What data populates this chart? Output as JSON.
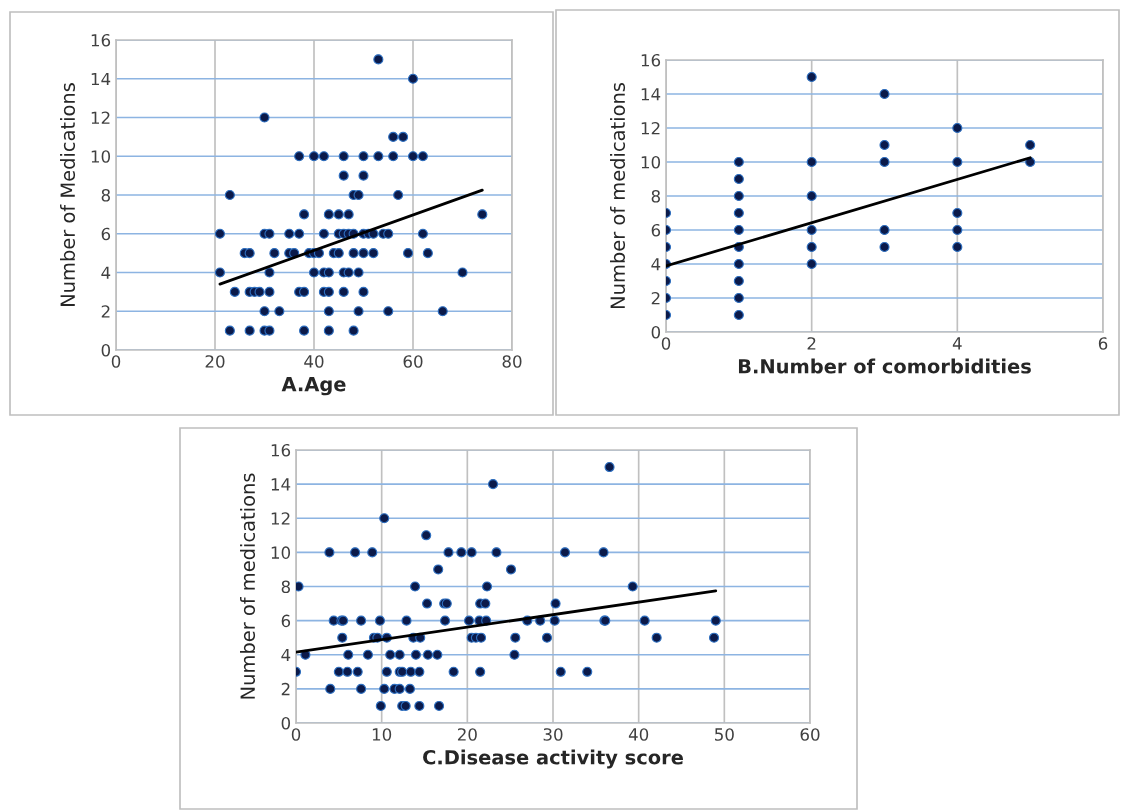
{
  "chart_data": [
    {
      "type": "scatter",
      "xlabel": "A.Age",
      "ylabel": "Number of Medications",
      "xlim": [
        0,
        80
      ],
      "xticks": [
        0,
        20,
        40,
        60,
        80
      ],
      "ylim": [
        0,
        16
      ],
      "yticks": [
        0,
        2,
        4,
        6,
        8,
        10,
        12,
        14,
        16
      ],
      "grid": true,
      "series": [
        {
          "marker": "circle",
          "color": "#0b1a4a",
          "x": [
            53,
            60,
            30,
            56,
            58,
            37,
            40,
            42,
            46,
            50,
            53,
            56,
            60,
            62,
            46,
            50,
            23,
            48,
            49,
            57,
            38,
            43,
            45,
            47,
            74,
            21,
            30,
            31,
            35,
            37,
            42,
            45,
            46,
            47,
            48,
            50,
            51,
            52,
            54,
            55,
            62,
            26,
            27,
            32,
            35,
            36,
            39,
            40,
            41,
            44,
            45,
            48,
            50,
            52,
            59,
            63,
            21,
            31,
            40,
            42,
            43,
            46,
            47,
            49,
            70,
            24,
            27,
            28,
            29,
            31,
            37,
            38,
            42,
            43,
            46,
            50,
            30,
            33,
            43,
            49,
            55,
            66,
            23,
            27,
            30,
            31,
            38,
            43,
            48
          ],
          "values": [
            15,
            14,
            12,
            11,
            11,
            10,
            10,
            10,
            10,
            10,
            10,
            10,
            10,
            10,
            9,
            9,
            8,
            8,
            8,
            8,
            7,
            7,
            7,
            7,
            7,
            6,
            6,
            6,
            6,
            6,
            6,
            6,
            6,
            6,
            6,
            6,
            6,
            6,
            6,
            6,
            6,
            5,
            5,
            5,
            5,
            5,
            5,
            5,
            5,
            5,
            5,
            5,
            5,
            5,
            5,
            5,
            4,
            4,
            4,
            4,
            4,
            4,
            4,
            4,
            4,
            3,
            3,
            3,
            3,
            3,
            3,
            3,
            3,
            3,
            3,
            3,
            2,
            2,
            2,
            2,
            2,
            2,
            1,
            1,
            1,
            1,
            1,
            1,
            1
          ]
        },
        {
          "type": "line",
          "color": "#000000",
          "x": [
            21,
            74
          ],
          "values": [
            3.4,
            8.25
          ]
        }
      ]
    },
    {
      "type": "scatter",
      "xlabel": "B.Number of comorbidities",
      "ylabel": "Number of medications",
      "xlim": [
        0,
        6
      ],
      "xticks": [
        0,
        2,
        4,
        6
      ],
      "ylim": [
        0,
        16
      ],
      "yticks": [
        0,
        2,
        4,
        6,
        8,
        10,
        12,
        14,
        16
      ],
      "grid": true,
      "series": [
        {
          "marker": "circle",
          "color": "#0b1a4a",
          "x": [
            0,
            0,
            0,
            0,
            0,
            0,
            0,
            1,
            1,
            1,
            1,
            1,
            1,
            1,
            1,
            1,
            1,
            2,
            2,
            2,
            2,
            2,
            2,
            3,
            3,
            3,
            3,
            3,
            4,
            4,
            4,
            4,
            4,
            5,
            5
          ],
          "values": [
            1,
            2,
            3,
            4,
            5,
            6,
            7,
            1,
            2,
            3,
            4,
            5,
            6,
            7,
            8,
            9,
            10,
            15,
            10,
            8,
            6,
            5,
            4,
            14,
            11,
            10,
            6,
            5,
            12,
            10,
            7,
            6,
            5,
            11,
            10
          ]
        },
        {
          "type": "line",
          "color": "#000000",
          "x": [
            0,
            5
          ],
          "values": [
            3.88,
            10.25
          ]
        }
      ]
    },
    {
      "type": "scatter",
      "xlabel": "C.Disease activity score",
      "ylabel": "Number of medications",
      "xlim": [
        0,
        60
      ],
      "xticks": [
        0,
        10,
        20,
        30,
        40,
        50,
        60
      ],
      "ylim": [
        0,
        16
      ],
      "yticks": [
        0,
        2,
        4,
        6,
        8,
        10,
        12,
        14,
        16
      ],
      "grid": true,
      "series": [
        {
          "marker": "circle",
          "color": "#0b1a4a",
          "x": [
            36.6,
            23.0,
            10.3,
            15.2,
            3.9,
            6.9,
            8.9,
            17.8,
            19.3,
            20.5,
            23.4,
            31.4,
            35.9,
            16.6,
            25.1,
            0.3,
            13.9,
            22.3,
            39.3,
            15.3,
            17.3,
            17.6,
            21.5,
            22.1,
            30.3,
            4.4,
            5.3,
            5.5,
            7.6,
            9.8,
            12.9,
            17.4,
            20.2,
            21.4,
            22.2,
            27.0,
            28.5,
            30.2,
            36.0,
            36.1,
            40.7,
            49.0,
            5.4,
            9.1,
            9.5,
            10.6,
            13.7,
            14.5,
            20.5,
            21.0,
            21.6,
            25.6,
            29.3,
            42.1,
            48.8,
            1.1,
            6.1,
            8.4,
            11.0,
            12.1,
            14.0,
            15.4,
            16.5,
            25.5,
            0,
            5.0,
            6.0,
            7.2,
            10.6,
            12.1,
            12.4,
            13.4,
            14.4,
            18.4,
            21.5,
            30.9,
            34.0,
            4.0,
            7.6,
            10.3,
            11.5,
            12.1,
            13.3,
            9.9,
            12.4,
            12.8,
            14.4,
            16.7
          ],
          "values": [
            15,
            14,
            12,
            11,
            10,
            10,
            10,
            10,
            10,
            10,
            10,
            10,
            10,
            9,
            9,
            8,
            8,
            8,
            8,
            7,
            7,
            7,
            7,
            7,
            7,
            6,
            6,
            6,
            6,
            6,
            6,
            6,
            6,
            6,
            6,
            6,
            6,
            6,
            6,
            6,
            6,
            6,
            5,
            5,
            5,
            5,
            5,
            5,
            5,
            5,
            5,
            5,
            5,
            5,
            5,
            4,
            4,
            4,
            4,
            4,
            4,
            4,
            4,
            4,
            3,
            3,
            3,
            3,
            3,
            3,
            3,
            3,
            3,
            3,
            3,
            3,
            3,
            2,
            2,
            2,
            2,
            2,
            2,
            1,
            1,
            1,
            1,
            1
          ]
        },
        {
          "type": "line",
          "color": "#000000",
          "x": [
            0,
            49
          ],
          "values": [
            4.15,
            7.74
          ]
        }
      ]
    }
  ]
}
